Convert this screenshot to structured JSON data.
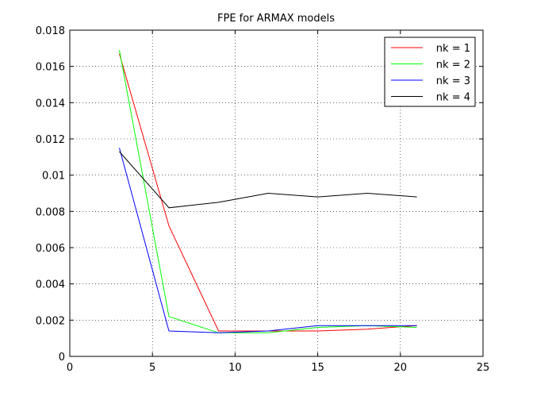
{
  "chart_data": {
    "type": "line",
    "title": "FPE for ARMAX models",
    "xlabel": "",
    "ylabel": "",
    "xlim": [
      0,
      25
    ],
    "ylim": [
      0,
      0.018
    ],
    "xticks": [
      0,
      5,
      10,
      15,
      20,
      25
    ],
    "xtick_labels": [
      "0",
      "5",
      "10",
      "15",
      "20",
      "25"
    ],
    "yticks": [
      0,
      0.002,
      0.004,
      0.006,
      0.008,
      0.01,
      0.012,
      0.014,
      0.016,
      0.018
    ],
    "ytick_labels": [
      "0",
      "0.002",
      "0.004",
      "0.006",
      "0.008",
      "0.01",
      "0.012",
      "0.014",
      "0.016",
      "0.018"
    ],
    "grid": true,
    "legend_position": "top-right",
    "x": [
      3,
      6,
      9,
      12,
      15,
      18,
      21
    ],
    "series": [
      {
        "name": "nk = 1",
        "color": "#ff0000",
        "values": [
          0.0167,
          0.0072,
          0.0014,
          0.0014,
          0.0014,
          0.0015,
          0.0017
        ]
      },
      {
        "name": "nk = 2",
        "color": "#00ff00",
        "values": [
          0.0169,
          0.0022,
          0.0013,
          0.0013,
          0.0016,
          0.0017,
          0.0016
        ]
      },
      {
        "name": "nk = 3",
        "color": "#0000ff",
        "values": [
          0.0115,
          0.0014,
          0.0013,
          0.0014,
          0.0017,
          0.0017,
          0.0017
        ]
      },
      {
        "name": "nk = 4",
        "color": "#000000",
        "values": [
          0.0113,
          0.0082,
          0.0085,
          0.009,
          0.0088,
          0.009,
          0.0088
        ]
      }
    ]
  }
}
